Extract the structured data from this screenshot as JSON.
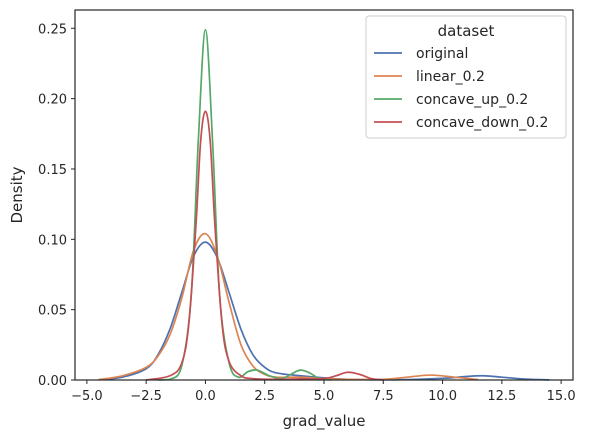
{
  "chart_data": {
    "type": "line",
    "title": "",
    "xlabel": "grad_value",
    "ylabel": "Density",
    "xlim": [
      -5.5,
      15.5
    ],
    "ylim": [
      0,
      0.263
    ],
    "xticks": [
      -5.0,
      -2.5,
      0.0,
      2.5,
      5.0,
      7.5,
      10.0,
      12.5,
      15.0
    ],
    "xtick_labels": [
      "−5.0",
      "−2.5",
      "0.0",
      "2.5",
      "5.0",
      "7.5",
      "10.0",
      "12.5",
      "15.0"
    ],
    "yticks": [
      0.0,
      0.05,
      0.1,
      0.15,
      0.2,
      0.25
    ],
    "ytick_labels": [
      "0.00",
      "0.05",
      "0.10",
      "0.15",
      "0.20",
      "0.25"
    ],
    "grid": false,
    "legend": {
      "title": "dataset",
      "placement": "top-right"
    },
    "series": [
      {
        "name": "original",
        "color": "#4c72b0",
        "x": [
          -4.5,
          -3.5,
          -2.5,
          -2.0,
          -1.5,
          -1.0,
          -0.5,
          0.0,
          0.5,
          1.0,
          1.5,
          2.0,
          2.5,
          3.0,
          4.0,
          5.0,
          6.0,
          8.0,
          10.0,
          11.0,
          11.7,
          12.5,
          13.5,
          14.5
        ],
        "y": [
          0.0002,
          0.002,
          0.008,
          0.018,
          0.036,
          0.062,
          0.088,
          0.098,
          0.087,
          0.062,
          0.036,
          0.018,
          0.009,
          0.005,
          0.003,
          0.0015,
          0.0005,
          0.0002,
          0.0012,
          0.0025,
          0.003,
          0.002,
          0.0006,
          0.0001
        ]
      },
      {
        "name": "linear_0.2",
        "color": "#dd8452",
        "x": [
          -4.5,
          -3.5,
          -2.5,
          -2.0,
          -1.5,
          -1.0,
          -0.5,
          0.0,
          0.5,
          1.0,
          1.5,
          2.0,
          2.5,
          3.0,
          4.0,
          5.0,
          6.0,
          7.5,
          8.5,
          9.5,
          10.5,
          11.5
        ],
        "y": [
          0.0003,
          0.003,
          0.009,
          0.017,
          0.032,
          0.058,
          0.092,
          0.104,
          0.088,
          0.055,
          0.025,
          0.01,
          0.004,
          0.002,
          0.002,
          0.001,
          0.0005,
          0.0005,
          0.002,
          0.0035,
          0.002,
          0.0003
        ]
      },
      {
        "name": "concave_up_0.2",
        "color": "#55a868",
        "x": [
          -2.0,
          -1.5,
          -1.0,
          -0.6,
          -0.3,
          0.0,
          0.3,
          0.6,
          1.0,
          1.4,
          1.8,
          2.2,
          2.7,
          3.2,
          3.6,
          4.0,
          4.4,
          4.8,
          5.3
        ],
        "y": [
          0.0,
          0.0005,
          0.01,
          0.06,
          0.17,
          0.249,
          0.17,
          0.06,
          0.012,
          0.002,
          0.006,
          0.007,
          0.003,
          0.001,
          0.004,
          0.007,
          0.005,
          0.001,
          0.0
        ]
      },
      {
        "name": "concave_down_0.2",
        "color": "#c44e52",
        "x": [
          -2.5,
          -1.5,
          -1.0,
          -0.7,
          -0.4,
          -0.2,
          0.0,
          0.2,
          0.4,
          0.7,
          1.0,
          1.5,
          2.0,
          3.0,
          4.0,
          5.0,
          5.5,
          6.0,
          6.5,
          7.0,
          7.5
        ],
        "y": [
          0.0,
          0.003,
          0.012,
          0.04,
          0.11,
          0.17,
          0.191,
          0.17,
          0.11,
          0.04,
          0.013,
          0.003,
          0.001,
          0.0005,
          0.0008,
          0.001,
          0.003,
          0.0055,
          0.004,
          0.001,
          0.0
        ]
      }
    ]
  }
}
